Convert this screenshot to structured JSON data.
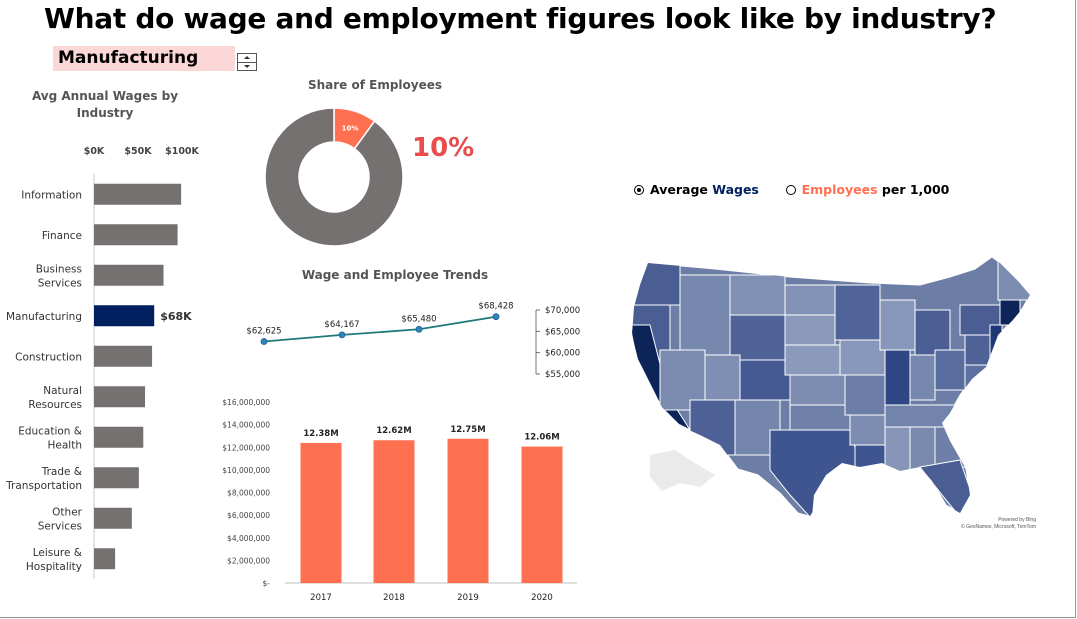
{
  "title": "What do wage and employment figures look like by industry?",
  "selector": {
    "value": "Manufacturing"
  },
  "colors": {
    "gray": "#767171",
    "navy": "#002060",
    "coral": "#ff7050",
    "red": "#e84c4c",
    "line": "#1f7a7a",
    "point": "#2e86c1"
  },
  "chart_data": [
    {
      "type": "bar",
      "orientation": "horizontal",
      "title": "Avg Annual Wages by Industry",
      "x_ticks": [
        "$0K",
        "$50K",
        "$100K"
      ],
      "xlim": [
        0,
        100000
      ],
      "categories": [
        "Information",
        "Finance",
        "Business Services",
        "Manufacturing",
        "Construction",
        "Natural Resources",
        "Education & Health",
        "Trade & Transportation",
        "Other Services",
        "Leisure & Hospitality"
      ],
      "values": [
        99000,
        95000,
        79000,
        68428,
        66000,
        58000,
        56000,
        51000,
        43000,
        24000
      ],
      "highlight": "Manufacturing",
      "highlight_label": "$68K"
    },
    {
      "type": "pie",
      "variant": "donut",
      "title": "Share of Employees",
      "slices": [
        {
          "label": "10%",
          "value": 10
        },
        {
          "label": "",
          "value": 90
        }
      ],
      "big_label": "10%"
    },
    {
      "type": "line",
      "title": "Wage and Employee Trends",
      "x": [
        2017,
        2018,
        2019,
        2020
      ],
      "values": [
        62625,
        64167,
        65480,
        68428
      ],
      "labels": [
        "$62,625",
        "$64,167",
        "$65,480",
        "$68,428"
      ],
      "ylim": [
        55000,
        70000
      ],
      "y_ticks": [
        "$70,000",
        "$65,000",
        "$60,000",
        "$55,000"
      ],
      "y_tick_values": [
        70000,
        65000,
        60000,
        55000
      ]
    },
    {
      "type": "bar",
      "categories": [
        "2017",
        "2018",
        "2019",
        "2020"
      ],
      "values": [
        12380000,
        12620000,
        12750000,
        12060000
      ],
      "labels": [
        "12.38M",
        "12.62M",
        "12.75M",
        "12.06M"
      ],
      "ylim": [
        0,
        16000000
      ],
      "y_ticks": [
        "$16,000,000",
        "$14,000,000",
        "$12,000,000",
        "$10,000,000",
        "$8,000,000",
        "$6,000,000",
        "$4,000,000",
        "$2,000,000",
        "$-"
      ],
      "y_tick_values": [
        16000000,
        14000000,
        12000000,
        10000000,
        8000000,
        6000000,
        4000000,
        2000000,
        0
      ]
    }
  ],
  "map": {
    "legend": {
      "wages_prefix": "Average ",
      "wages_word": "Wages",
      "employees_word": "Employees",
      "employees_suffix": " per 1,000"
    },
    "credit_line1": "Powered by Bing",
    "credit_line2": "© GeoNames, Microsoft, TomTom"
  }
}
